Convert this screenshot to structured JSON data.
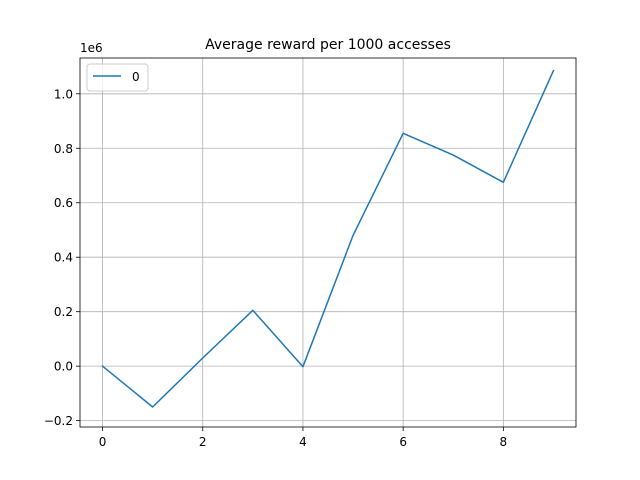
{
  "chart_data": {
    "type": "line",
    "title": "Average reward per 1000 accesses",
    "xlabel": "",
    "ylabel": "",
    "y_offset_label": "1e6",
    "xlim": [
      -0.45,
      9.45
    ],
    "ylim": [
      -0.2234,
      1.1314
    ],
    "x_ticks": [
      0,
      2,
      4,
      6,
      8
    ],
    "x_tick_labels": [
      "0",
      "2",
      "4",
      "6",
      "8"
    ],
    "y_ticks": [
      -0.2,
      0.0,
      0.2,
      0.4,
      0.6,
      0.8,
      1.0
    ],
    "y_tick_labels": [
      "−0.2",
      "0.0",
      "0.2",
      "0.4",
      "0.6",
      "0.8",
      "1.0"
    ],
    "grid": true,
    "legend_position": "top-left",
    "series": [
      {
        "name": "0",
        "color": "#1f77b4",
        "x": [
          0,
          1,
          2,
          3,
          4,
          5,
          6,
          7,
          8,
          9
        ],
        "y": [
          0.0,
          -0.15,
          0.03,
          0.205,
          -0.002,
          0.48,
          0.855,
          0.775,
          0.675,
          1.085
        ]
      }
    ]
  }
}
